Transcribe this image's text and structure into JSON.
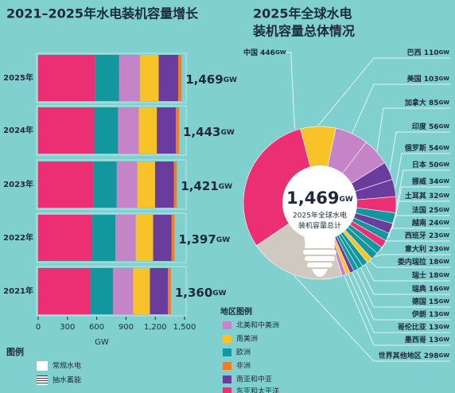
{
  "chart_data": [
    {
      "type": "stacked-bar-horizontal",
      "title": "2021–2025年水电装机容量增长",
      "categories": [
        "2025年",
        "2024年",
        "2023年",
        "2022年",
        "2021年"
      ],
      "series": [
        {
          "name": "北美和中美洲",
          "color": "#c583c8",
          "values": [
            215,
            213,
            211,
            208,
            205
          ]
        },
        {
          "name": "南美洲",
          "color": "#f8c229",
          "values": [
            190,
            185,
            182,
            178,
            172
          ]
        },
        {
          "name": "欧洲",
          "color": "#13979f",
          "values": [
            245,
            243,
            240,
            237,
            233
          ]
        },
        {
          "name": "非洲",
          "color": "#f47b20",
          "values": [
            34,
            32,
            31,
            30,
            30
          ]
        },
        {
          "name": "南亚和中亚",
          "color": "#6a3c9e",
          "values": [
            200,
            195,
            192,
            189,
            185
          ]
        },
        {
          "name": "东亚和太平洋",
          "color": "#ec2f72",
          "values": [
            585,
            575,
            565,
            555,
            535
          ]
        }
      ],
      "totals": [
        1469,
        1443,
        1421,
        1397,
        1360
      ],
      "total_labels": [
        "1,469",
        "1,443",
        "1,421",
        "1,397",
        "1,360"
      ],
      "unit": "GW",
      "xlim": [
        0,
        1500
      ],
      "xticks": [
        0,
        300,
        600,
        900,
        {
          "value": 1200,
          "label": "1,200"
        },
        {
          "value": 1500,
          "label": "1,500"
        }
      ],
      "xlabel": "GW",
      "legend_title": "地区图例",
      "type_legend": {
        "title": "图例",
        "items": [
          "常规水电",
          "抽水蓄能"
        ]
      }
    },
    {
      "type": "pie",
      "title": [
        "2025年全球水电",
        "装机容量总体情况"
      ],
      "categories": [
        "中国",
        "巴西",
        "美国",
        "加拿大",
        "印度",
        "俄罗斯",
        "日本",
        "挪威",
        "土耳其",
        "法国",
        "越南",
        "西班牙",
        "意大利",
        "委内瑞拉",
        "瑞士",
        "瑞典",
        "德国",
        "伊朗",
        "哥伦比亚",
        "墨西哥",
        "世界其他地区"
      ],
      "values": [
        446,
        110,
        103,
        85,
        56,
        54,
        50,
        34,
        32,
        25,
        24,
        23,
        23,
        18,
        18,
        16,
        15,
        13,
        13,
        13,
        298
      ],
      "colors": [
        "#ec2f72",
        "#f8c229",
        "#c583c8",
        "#c583c8",
        "#6a3c9e",
        "#6a3c9e",
        "#ec2f72",
        "#13979f",
        "#6a3c9e",
        "#13979f",
        "#ec2f72",
        "#13979f",
        "#13979f",
        "#f8c229",
        "#13979f",
        "#13979f",
        "#13979f",
        "#6a3c9e",
        "#f8c229",
        "#c583c8",
        "#cfc9c0"
      ],
      "unit": "GW",
      "center_value": 1469,
      "center_label": "1,469",
      "center_text": [
        "2025年全球水电",
        "装机容量总计"
      ]
    }
  ]
}
